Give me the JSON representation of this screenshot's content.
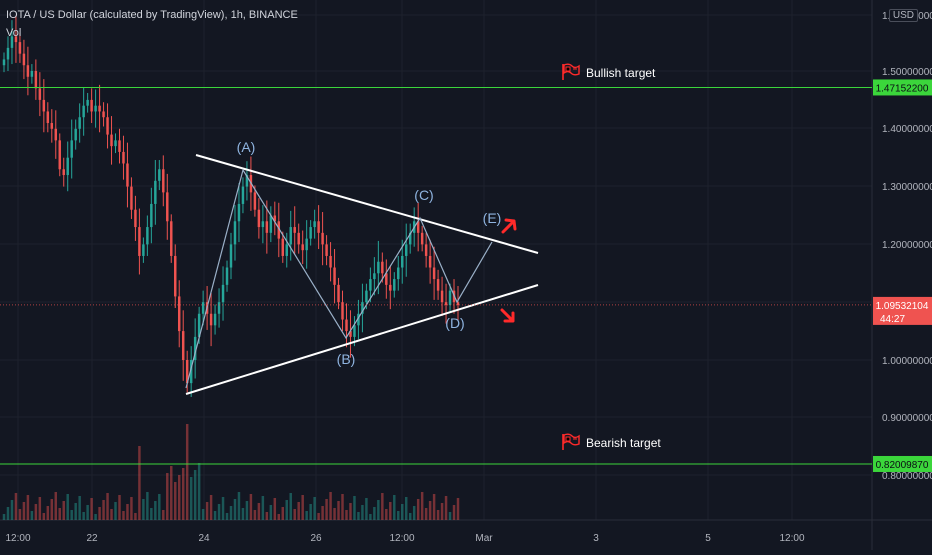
{
  "header": {
    "title": "IOTA / US Dollar (calculated by TradingView), 1h, BINANCE",
    "indicator": "Vol",
    "currency_badge": "USD"
  },
  "colors": {
    "background": "#131722",
    "grid": "#1e222d",
    "up": "#26a69a",
    "down": "#ef5350",
    "target_line": "#3bd63b",
    "pattern_line": "#ffffff",
    "wave_line": "#9ab0c8",
    "wave_label": "#8fb4e0",
    "axis_text": "#b2b5be",
    "arrow": "#ff2a2a",
    "price_label": "#ef5350",
    "target_label_bg": "#3bd63b"
  },
  "chart_data": {
    "type": "candlestick",
    "y_scale_labels": [
      "1.60000000",
      "1.50000000",
      "1.40000000",
      "1.30000000",
      "1.20000000",
      "1.10000000",
      "1.00000000",
      "0.90000000",
      "0.80000000"
    ],
    "x_tick_labels": [
      "12:00",
      "22",
      "24",
      "26",
      "12:00",
      "Mar",
      "3",
      "5",
      "12:00"
    ],
    "levels": [
      {
        "name": "Bullish target",
        "value": 1.471522,
        "label": "1.47152200"
      },
      {
        "name": "Bearish target",
        "value": 0.8200987,
        "label": "0.82009870"
      }
    ],
    "last_price": {
      "value": 1.09532104,
      "label": "1.09532104",
      "countdown": "44:27"
    },
    "wave_labels": [
      "(A)",
      "(B)",
      "(C)",
      "(D)",
      "(E)"
    ],
    "pattern": "symmetrical triangle",
    "candles_close": [
      1.52,
      1.54,
      1.56,
      1.55,
      1.53,
      1.51,
      1.49,
      1.5,
      1.47,
      1.45,
      1.43,
      1.41,
      1.4,
      1.38,
      1.33,
      1.32,
      1.35,
      1.38,
      1.4,
      1.42,
      1.44,
      1.45,
      1.43,
      1.44,
      1.43,
      1.42,
      1.39,
      1.37,
      1.38,
      1.36,
      1.34,
      1.3,
      1.26,
      1.23,
      1.18,
      1.2,
      1.23,
      1.27,
      1.31,
      1.33,
      1.29,
      1.24,
      1.18,
      1.11,
      1.05,
      1.0,
      0.96,
      1.0,
      1.04,
      1.08,
      1.1,
      1.08,
      1.06,
      1.08,
      1.1,
      1.13,
      1.16,
      1.2,
      1.24,
      1.27,
      1.3,
      1.32,
      1.29,
      1.26,
      1.23,
      1.24,
      1.22,
      1.25,
      1.24,
      1.21,
      1.18,
      1.2,
      1.23,
      1.22,
      1.2,
      1.19,
      1.21,
      1.23,
      1.24,
      1.22,
      1.2,
      1.18,
      1.16,
      1.13,
      1.1,
      1.07,
      1.05,
      1.04,
      1.06,
      1.08,
      1.1,
      1.12,
      1.14,
      1.15,
      1.17,
      1.15,
      1.13,
      1.12,
      1.14,
      1.16,
      1.18,
      1.2,
      1.22,
      1.24,
      1.22,
      1.2,
      1.18,
      1.16,
      1.14,
      1.12,
      1.1,
      1.095,
      1.12,
      1.1,
      1.095
    ]
  }
}
